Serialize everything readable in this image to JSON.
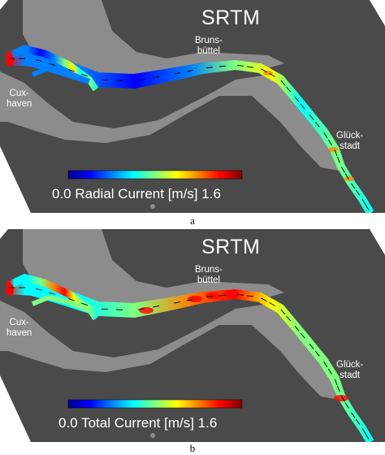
{
  "panels": [
    {
      "id": "a",
      "title": "SRTM",
      "places": {
        "bruns_1": "Bruns-",
        "bruns_2": "büttel",
        "cux_1": "Cux-",
        "cux_2": "haven",
        "glueck_1": "Glück-",
        "glueck_2": "stadt"
      },
      "colorbar": {
        "min": "0.0",
        "label": "Radial Current [m/s]",
        "max": "1.6"
      },
      "caption": "a",
      "field": "radial"
    },
    {
      "id": "b",
      "title": "SRTM",
      "places": {
        "bruns_1": "Bruns-",
        "bruns_2": "büttel",
        "cux_1": "Cux-",
        "cux_2": "haven",
        "glueck_1": "Glück-",
        "glueck_2": "stadt"
      },
      "colorbar": {
        "min": "0.0",
        "label": "Total Current [m/s]",
        "max": "1.6"
      },
      "caption": "b",
      "field": "total"
    }
  ],
  "colors": {
    "background": "#4a4a4a",
    "land": "#8c8c8c",
    "colormap": [
      "#00008f",
      "#0000ff",
      "#0080ff",
      "#00ffff",
      "#80ff80",
      "#ffff00",
      "#ff8000",
      "#ff0000",
      "#800000"
    ]
  }
}
